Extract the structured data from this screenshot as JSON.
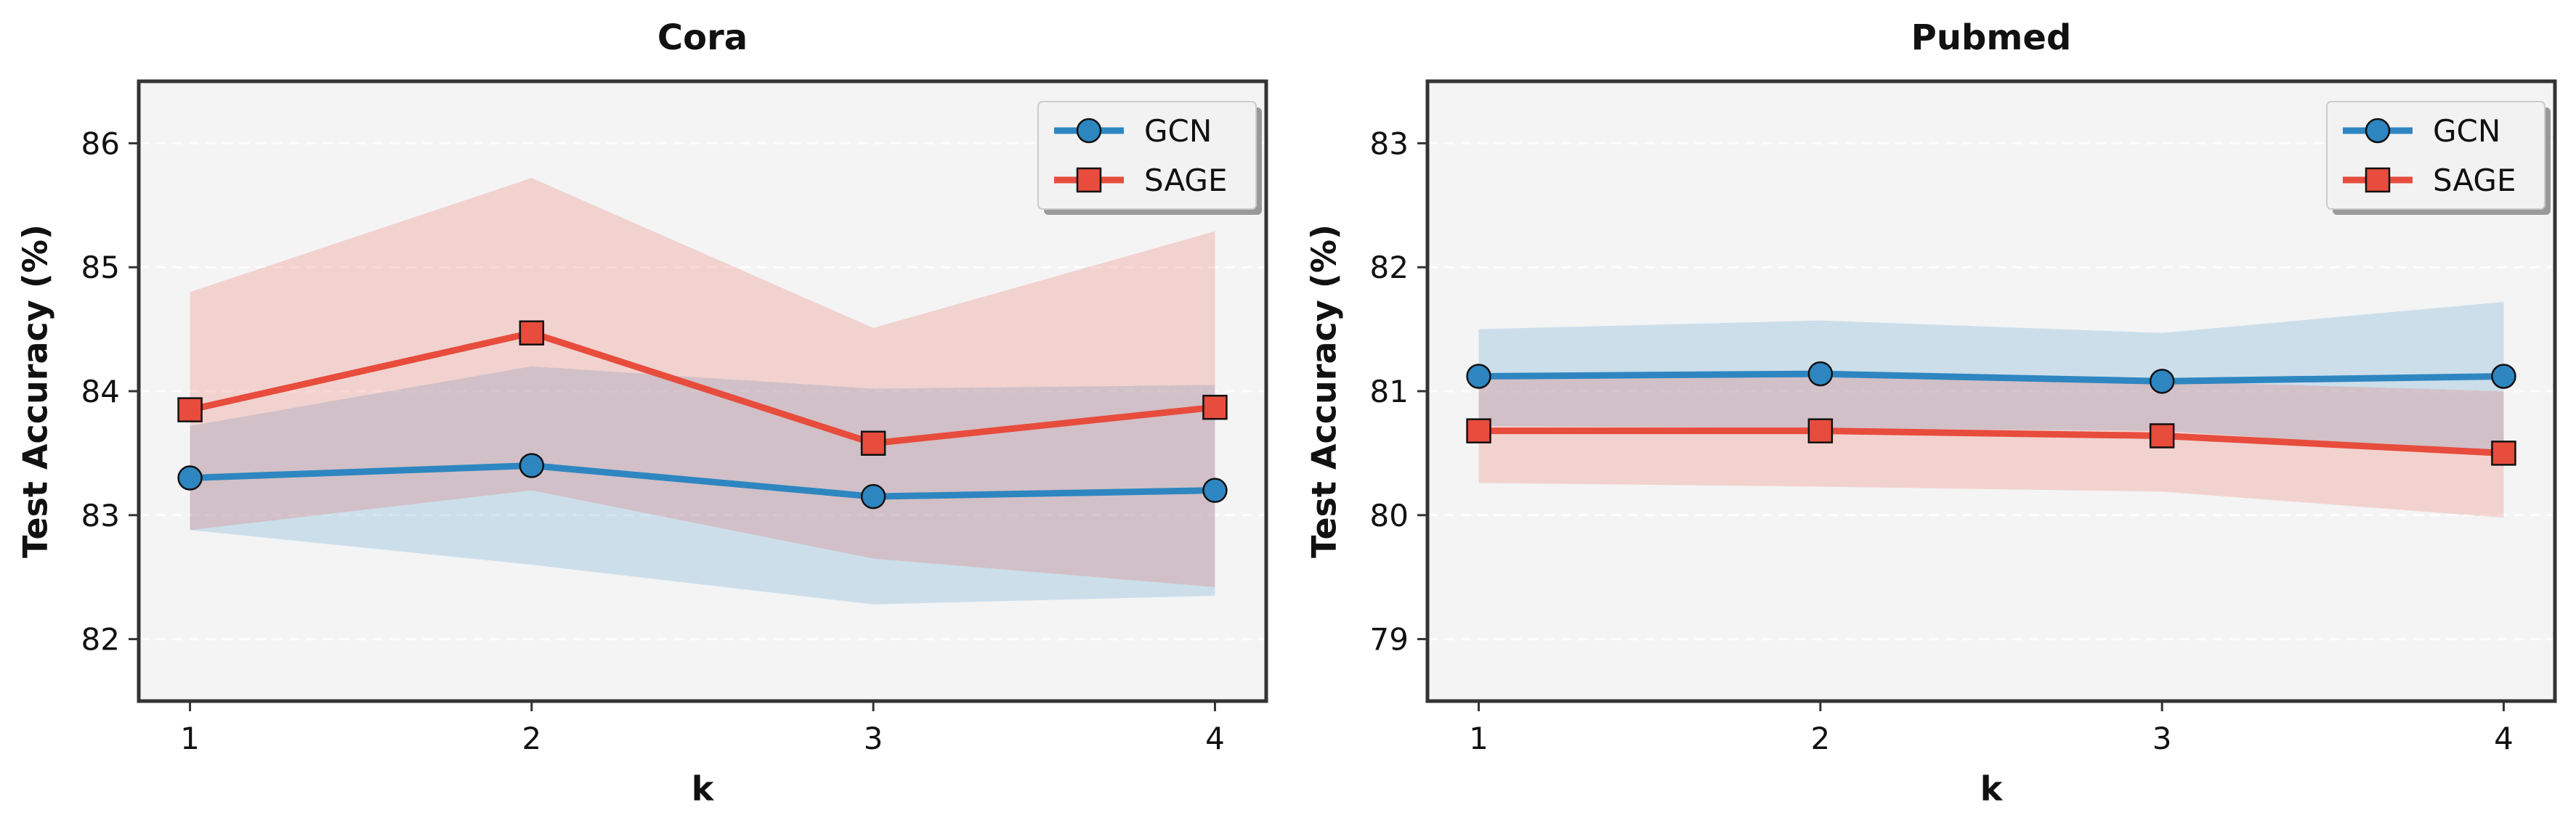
{
  "chart_data": [
    {
      "type": "line",
      "title": "Cora",
      "xlabel": "k",
      "ylabel": "Test Accuracy (%)",
      "x": [
        1,
        2,
        3,
        4
      ],
      "xlim": [
        0.85,
        4.15
      ],
      "ylim": [
        81.5,
        86.5
      ],
      "yticks": [
        82,
        83,
        84,
        85,
        86
      ],
      "grid": true,
      "legend_position": "top-right",
      "series": [
        {
          "name": "GCN",
          "color": "#2E86C1",
          "marker": "circle",
          "values": [
            83.3,
            83.4,
            83.15,
            83.2
          ],
          "lower": [
            82.88,
            82.6,
            82.28,
            82.35
          ],
          "upper": [
            83.72,
            84.2,
            84.02,
            84.05
          ]
        },
        {
          "name": "SAGE",
          "color": "#E74C3C",
          "marker": "square",
          "values": [
            83.85,
            84.47,
            83.58,
            83.87
          ],
          "lower": [
            82.88,
            83.2,
            82.65,
            82.42
          ],
          "upper": [
            84.8,
            85.72,
            84.51,
            85.29
          ]
        }
      ]
    },
    {
      "type": "line",
      "title": "Pubmed",
      "xlabel": "k",
      "ylabel": "Test Accuracy (%)",
      "x": [
        1,
        2,
        3,
        4
      ],
      "xlim": [
        0.85,
        4.15
      ],
      "ylim": [
        78.5,
        83.5
      ],
      "yticks": [
        79,
        80,
        81,
        82,
        83
      ],
      "grid": true,
      "legend_position": "top-right",
      "series": [
        {
          "name": "GCN",
          "color": "#2E86C1",
          "marker": "circle",
          "values": [
            81.12,
            81.14,
            81.08,
            81.12
          ],
          "lower": [
            80.72,
            80.7,
            80.68,
            80.5
          ],
          "upper": [
            81.5,
            81.57,
            81.47,
            81.72
          ]
        },
        {
          "name": "SAGE",
          "color": "#E74C3C",
          "marker": "square",
          "values": [
            80.68,
            80.68,
            80.64,
            80.5
          ],
          "lower": [
            80.26,
            80.23,
            80.19,
            79.98
          ],
          "upper": [
            81.1,
            81.12,
            81.08,
            81.0
          ]
        }
      ]
    }
  ]
}
